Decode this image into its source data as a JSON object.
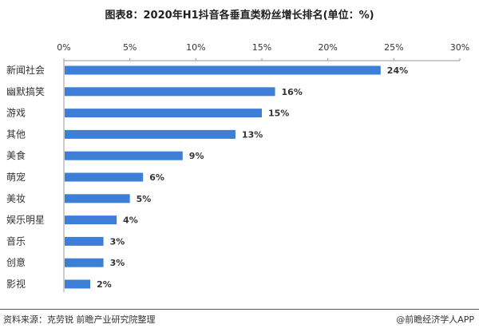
{
  "header": {
    "title": "图表8：2020年H1抖音各垂直类粉丝增长排名(单位：%)"
  },
  "footer": {
    "source": "资料来源：克劳锐  前瞻产业研究院整理",
    "brand": "@前瞻经济学人APP"
  },
  "colors": {
    "bar": "#3d7fd6",
    "axis": "#999999"
  },
  "chart_data": {
    "type": "bar",
    "orientation": "horizontal",
    "title": "图表8：2020年H1抖音各垂直类粉丝增长排名(单位：%)",
    "xlabel": "",
    "ylabel": "",
    "xlim": [
      0,
      30
    ],
    "ticks": [
      0,
      5,
      10,
      15,
      20,
      25,
      30
    ],
    "tick_labels": [
      "0%",
      "5%",
      "10%",
      "15%",
      "20%",
      "25%",
      "30%"
    ],
    "tick_position": "top",
    "grid": false,
    "legend": "none",
    "categories": [
      "新闻社会",
      "幽默搞笑",
      "游戏",
      "其他",
      "美食",
      "萌宠",
      "美妆",
      "娱乐明星",
      "音乐",
      "创意",
      "影视"
    ],
    "values": [
      24,
      16,
      15,
      13,
      9,
      6,
      5,
      4,
      3,
      3,
      2
    ],
    "value_labels": [
      "24%",
      "16%",
      "15%",
      "13%",
      "9%",
      "6%",
      "5%",
      "4%",
      "3%",
      "3%",
      "2%"
    ]
  }
}
